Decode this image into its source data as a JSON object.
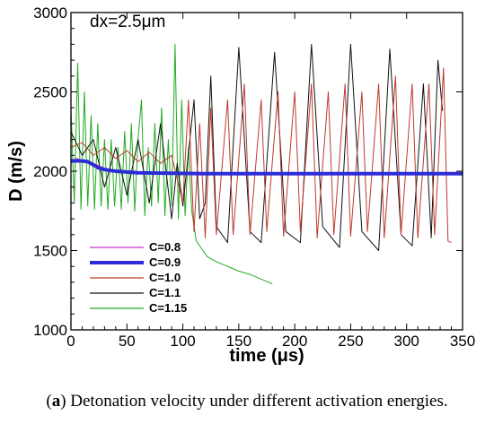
{
  "caption": {
    "label": "a",
    "text": " Detonation velocity under different activation energies."
  },
  "chart_data": {
    "type": "line",
    "annotation": "dx=2.5μm",
    "xlabel": "time (μs)",
    "ylabel": "D (m/s)",
    "xlim": [
      0,
      350
    ],
    "ylim": [
      1000,
      3000
    ],
    "xticks": [
      0,
      50,
      100,
      150,
      200,
      250,
      300,
      350
    ],
    "yticks": [
      1000,
      1500,
      2000,
      2500,
      3000
    ],
    "grid": false,
    "legend_position": "lower-left",
    "series": [
      {
        "name": "C=0.8",
        "color": "#cc33cc",
        "points": [
          [
            0,
            2060
          ],
          [
            5,
            2080
          ],
          [
            10,
            2070
          ],
          [
            15,
            2060
          ],
          [
            20,
            2050
          ],
          [
            30,
            2020
          ],
          [
            40,
            2000
          ],
          [
            60,
            1990
          ],
          [
            80,
            1985
          ],
          [
            120,
            1985
          ],
          [
            200,
            1985
          ],
          [
            350,
            1985
          ]
        ]
      },
      {
        "name": "C=0.9",
        "color": "#2b2bd8",
        "points": [
          [
            0,
            2065
          ],
          [
            10,
            2065
          ],
          [
            15,
            2060
          ],
          [
            20,
            2040
          ],
          [
            25,
            2020
          ],
          [
            30,
            2010
          ],
          [
            40,
            2000
          ],
          [
            50,
            1995
          ],
          [
            60,
            1990
          ],
          [
            80,
            1988
          ],
          [
            120,
            1985
          ],
          [
            200,
            1985
          ],
          [
            300,
            1985
          ],
          [
            350,
            1985
          ]
        ]
      },
      {
        "name": "C=1.0",
        "color": "#c0392b",
        "points": [
          [
            0,
            2150
          ],
          [
            10,
            2180
          ],
          [
            20,
            2100
          ],
          [
            30,
            2150
          ],
          [
            40,
            2080
          ],
          [
            50,
            2130
          ],
          [
            60,
            2060
          ],
          [
            70,
            2120
          ],
          [
            80,
            2050
          ],
          [
            90,
            2100
          ],
          [
            100,
            1800
          ],
          [
            105,
            2450
          ],
          [
            110,
            1620
          ],
          [
            115,
            2300
          ],
          [
            120,
            1580
          ],
          [
            125,
            2400
          ],
          [
            130,
            1600
          ],
          [
            140,
            2450
          ],
          [
            145,
            1600
          ],
          [
            155,
            2550
          ],
          [
            160,
            1600
          ],
          [
            170,
            2450
          ],
          [
            175,
            1620
          ],
          [
            185,
            2500
          ],
          [
            190,
            1590
          ],
          [
            200,
            2500
          ],
          [
            205,
            1620
          ],
          [
            215,
            2550
          ],
          [
            220,
            1580
          ],
          [
            230,
            2500
          ],
          [
            235,
            1600
          ],
          [
            245,
            2550
          ],
          [
            250,
            1590
          ],
          [
            260,
            2500
          ],
          [
            265,
            1620
          ],
          [
            275,
            2550
          ],
          [
            280,
            1580
          ],
          [
            290,
            2600
          ],
          [
            295,
            1600
          ],
          [
            305,
            2550
          ],
          [
            310,
            1580
          ],
          [
            320,
            2550
          ],
          [
            325,
            1600
          ],
          [
            333,
            2650
          ],
          [
            337,
            1560
          ],
          [
            340,
            1550
          ]
        ]
      },
      {
        "name": "C=1.1",
        "color": "#111111",
        "points": [
          [
            0,
            2250
          ],
          [
            10,
            2100
          ],
          [
            20,
            2200
          ],
          [
            30,
            1900
          ],
          [
            40,
            2150
          ],
          [
            50,
            1850
          ],
          [
            60,
            2200
          ],
          [
            70,
            1800
          ],
          [
            80,
            2300
          ],
          [
            90,
            1700
          ],
          [
            95,
            2050
          ],
          [
            100,
            1780
          ],
          [
            110,
            2450
          ],
          [
            115,
            1700
          ],
          [
            120,
            1800
          ],
          [
            125,
            2600
          ],
          [
            130,
            1650
          ],
          [
            140,
            1550
          ],
          [
            150,
            2780
          ],
          [
            160,
            1620
          ],
          [
            170,
            1550
          ],
          [
            182,
            2750
          ],
          [
            192,
            1620
          ],
          [
            205,
            1550
          ],
          [
            215,
            2800
          ],
          [
            225,
            1650
          ],
          [
            240,
            1520
          ],
          [
            250,
            2800
          ],
          [
            260,
            1620
          ],
          [
            275,
            1500
          ],
          [
            285,
            2770
          ],
          [
            295,
            1600
          ],
          [
            305,
            1530
          ],
          [
            315,
            2550
          ],
          [
            322,
            1580
          ],
          [
            328,
            2700
          ],
          [
            332,
            2380
          ]
        ]
      },
      {
        "name": "C=1.15",
        "color": "#22aa22",
        "points": [
          [
            0,
            2400
          ],
          [
            3,
            1800
          ],
          [
            6,
            2680
          ],
          [
            9,
            1760
          ],
          [
            12,
            2500
          ],
          [
            15,
            1780
          ],
          [
            18,
            2350
          ],
          [
            21,
            1760
          ],
          [
            24,
            2300
          ],
          [
            27,
            1780
          ],
          [
            30,
            2200
          ],
          [
            33,
            1760
          ],
          [
            36,
            2200
          ],
          [
            39,
            1780
          ],
          [
            42,
            2150
          ],
          [
            45,
            1760
          ],
          [
            48,
            2250
          ],
          [
            51,
            1800
          ],
          [
            54,
            2300
          ],
          [
            57,
            1750
          ],
          [
            60,
            2200
          ],
          [
            63,
            2450
          ],
          [
            66,
            1720
          ],
          [
            69,
            2150
          ],
          [
            72,
            1780
          ],
          [
            75,
            2300
          ],
          [
            78,
            1800
          ],
          [
            81,
            2400
          ],
          [
            84,
            1720
          ],
          [
            87,
            2200
          ],
          [
            90,
            1780
          ],
          [
            93,
            2800
          ],
          [
            96,
            1700
          ],
          [
            99,
            2450
          ],
          [
            102,
            1720
          ],
          [
            105,
            2150
          ],
          [
            108,
            1750
          ],
          [
            112,
            1560
          ],
          [
            116,
            1520
          ],
          [
            122,
            1460
          ],
          [
            130,
            1430
          ],
          [
            140,
            1400
          ],
          [
            150,
            1370
          ],
          [
            160,
            1350
          ],
          [
            170,
            1320
          ],
          [
            180,
            1290
          ]
        ]
      }
    ]
  }
}
